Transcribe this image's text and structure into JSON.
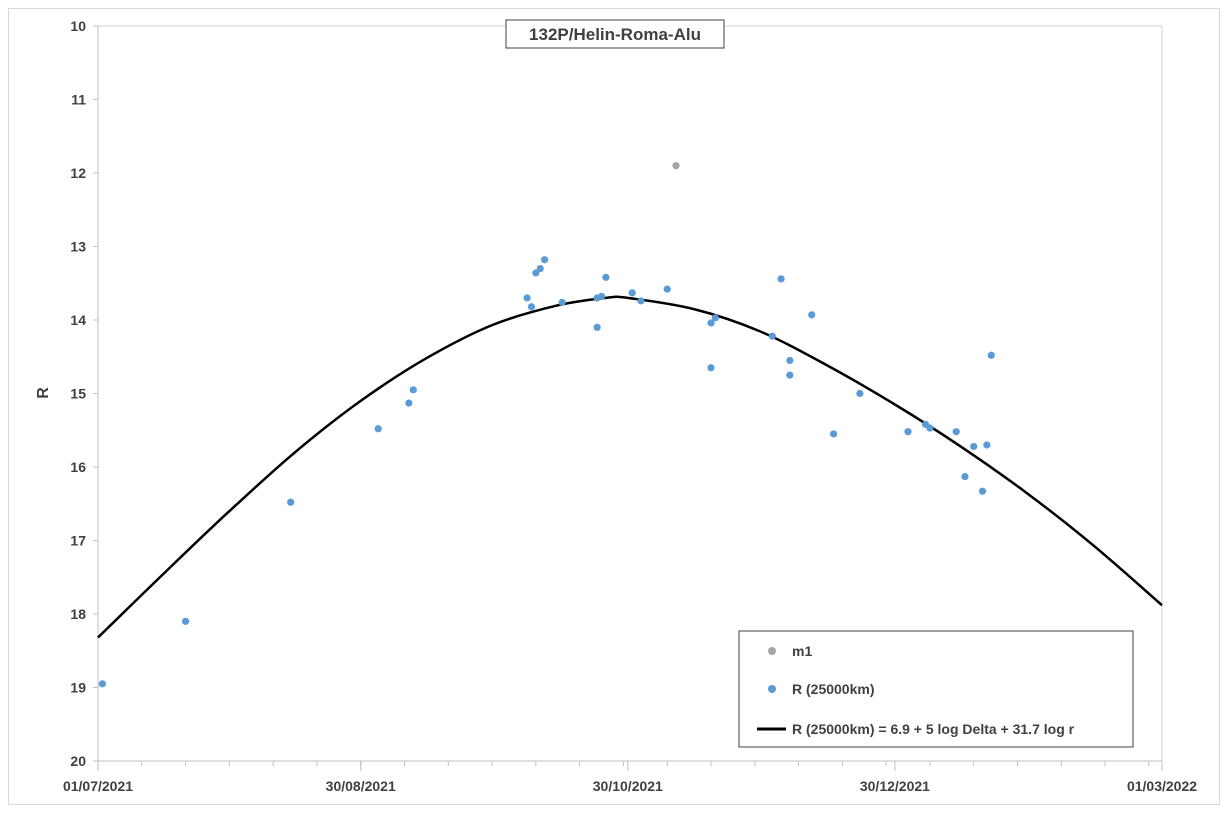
{
  "chart_data": {
    "type": "scatter",
    "title": "132P/Helin-Roma-Alu",
    "xlabel": "",
    "ylabel": "R",
    "x_axis": {
      "type": "date",
      "min": "2021-07-01",
      "max": "2022-03-01",
      "tick_labels": [
        "01/07/2021",
        "30/08/2021",
        "30/10/2021",
        "30/12/2021",
        "01/03/2022"
      ],
      "tick_dates": [
        "2021-07-01",
        "2021-08-30",
        "2021-10-30",
        "2021-12-30",
        "2022-03-01"
      ]
    },
    "y_axis": {
      "min": 10,
      "max": 20,
      "reversed": true,
      "tick_labels": [
        "10",
        "11",
        "12",
        "13",
        "14",
        "15",
        "16",
        "17",
        "18",
        "19",
        "20"
      ]
    },
    "grid": false,
    "legend_position": "bottom-right",
    "series": [
      {
        "name": "m1",
        "type": "scatter",
        "color": "#a5a5a5",
        "points": [
          {
            "x": "2021-11-10",
            "y": 11.9
          }
        ]
      },
      {
        "name": "R (25000km)",
        "type": "scatter",
        "color": "#5b9bd5",
        "points": [
          {
            "x": "2021-07-02",
            "y": 18.95
          },
          {
            "x": "2021-07-21",
            "y": 18.1
          },
          {
            "x": "2021-08-14",
            "y": 16.48
          },
          {
            "x": "2021-09-03",
            "y": 15.48
          },
          {
            "x": "2021-09-10",
            "y": 15.13
          },
          {
            "x": "2021-09-11",
            "y": 14.95
          },
          {
            "x": "2021-10-07",
            "y": 13.7
          },
          {
            "x": "2021-10-08",
            "y": 13.82
          },
          {
            "x": "2021-10-09",
            "y": 13.36
          },
          {
            "x": "2021-10-10",
            "y": 13.3
          },
          {
            "x": "2021-10-11",
            "y": 13.18
          },
          {
            "x": "2021-10-15",
            "y": 13.76
          },
          {
            "x": "2021-10-23",
            "y": 14.1
          },
          {
            "x": "2021-10-23",
            "y": 13.7
          },
          {
            "x": "2021-10-24",
            "y": 13.68
          },
          {
            "x": "2021-10-25",
            "y": 13.42
          },
          {
            "x": "2021-10-31",
            "y": 13.63
          },
          {
            "x": "2021-11-02",
            "y": 13.74
          },
          {
            "x": "2021-11-08",
            "y": 13.58
          },
          {
            "x": "2021-11-18",
            "y": 14.65
          },
          {
            "x": "2021-11-18",
            "y": 14.04
          },
          {
            "x": "2021-11-19",
            "y": 13.97
          },
          {
            "x": "2021-12-02",
            "y": 14.22
          },
          {
            "x": "2021-12-04",
            "y": 13.44
          },
          {
            "x": "2021-12-06",
            "y": 14.55
          },
          {
            "x": "2021-12-06",
            "y": 14.75
          },
          {
            "x": "2021-12-11",
            "y": 13.93
          },
          {
            "x": "2021-12-16",
            "y": 15.55
          },
          {
            "x": "2021-12-22",
            "y": 15.0
          },
          {
            "x": "2022-01-02",
            "y": 15.52
          },
          {
            "x": "2022-01-06",
            "y": 15.42
          },
          {
            "x": "2022-01-07",
            "y": 15.47
          },
          {
            "x": "2022-01-13",
            "y": 15.52
          },
          {
            "x": "2022-01-15",
            "y": 16.13
          },
          {
            "x": "2022-01-17",
            "y": 15.72
          },
          {
            "x": "2022-01-19",
            "y": 16.33
          },
          {
            "x": "2022-01-20",
            "y": 15.7
          },
          {
            "x": "2022-01-21",
            "y": 14.48
          }
        ]
      },
      {
        "name": "R (25000km) = 6.9 + 5 log Delta + 31.7 log r",
        "type": "line",
        "color": "#000000",
        "points": [
          {
            "x": "2021-07-01",
            "y": 18.32
          },
          {
            "x": "2021-07-16",
            "y": 17.45
          },
          {
            "x": "2021-07-31",
            "y": 16.6
          },
          {
            "x": "2021-08-15",
            "y": 15.8
          },
          {
            "x": "2021-08-30",
            "y": 15.1
          },
          {
            "x": "2021-09-14",
            "y": 14.52
          },
          {
            "x": "2021-09-29",
            "y": 14.07
          },
          {
            "x": "2021-10-14",
            "y": 13.8
          },
          {
            "x": "2021-10-25",
            "y": 13.7
          },
          {
            "x": "2021-10-30",
            "y": 13.7
          },
          {
            "x": "2021-11-14",
            "y": 13.85
          },
          {
            "x": "2021-11-29",
            "y": 14.15
          },
          {
            "x": "2021-12-14",
            "y": 14.6
          },
          {
            "x": "2021-12-30",
            "y": 15.15
          },
          {
            "x": "2022-01-14",
            "y": 15.72
          },
          {
            "x": "2022-01-29",
            "y": 16.35
          },
          {
            "x": "2022-02-13",
            "y": 17.05
          },
          {
            "x": "2022-03-01",
            "y": 17.88
          }
        ]
      }
    ],
    "colors": {
      "m1": "#a5a5a5",
      "r_points": "#5b9bd5",
      "fit_line": "#000000",
      "axis": "#bfbfbf",
      "text": "#404040"
    }
  }
}
